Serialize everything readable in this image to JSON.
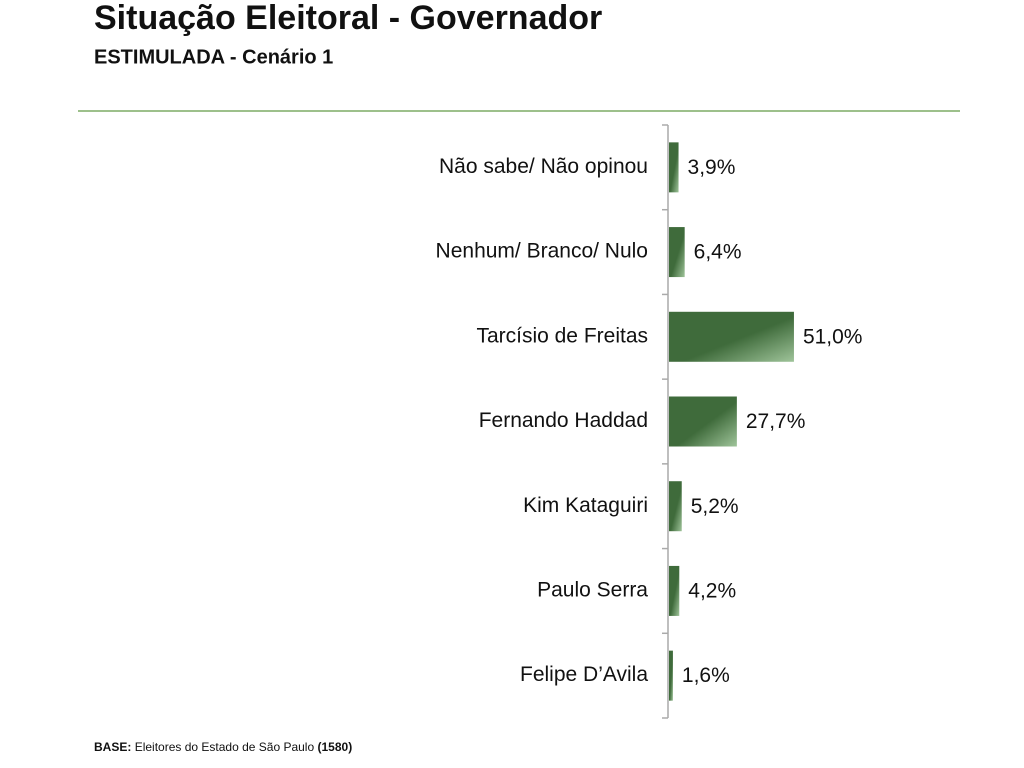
{
  "chart_data": {
    "type": "hbar",
    "title": "Situação Eleitoral - Governador",
    "subtitle": "ESTIMULADA - Cenário 1",
    "categories": [
      "Não sabe/ Não opinou",
      "Nenhum/ Branco/ Nulo",
      "Tarcísio de Freitas",
      "Fernando Haddad",
      "Kim Kataguiri",
      "Paulo Serra",
      "Felipe D’Avila"
    ],
    "values": [
      3.9,
      6.4,
      51.0,
      27.7,
      5.2,
      4.2,
      1.6
    ],
    "value_labels": [
      "3,9%",
      "6,4%",
      "51,0%",
      "27,7%",
      "5,2%",
      "4,2%",
      "1,6%"
    ],
    "color": "#3f6b3b",
    "footnote": {
      "label": "BASE:",
      "text": "Eleitores do Estado de São Paulo",
      "count": "(1580)"
    }
  }
}
